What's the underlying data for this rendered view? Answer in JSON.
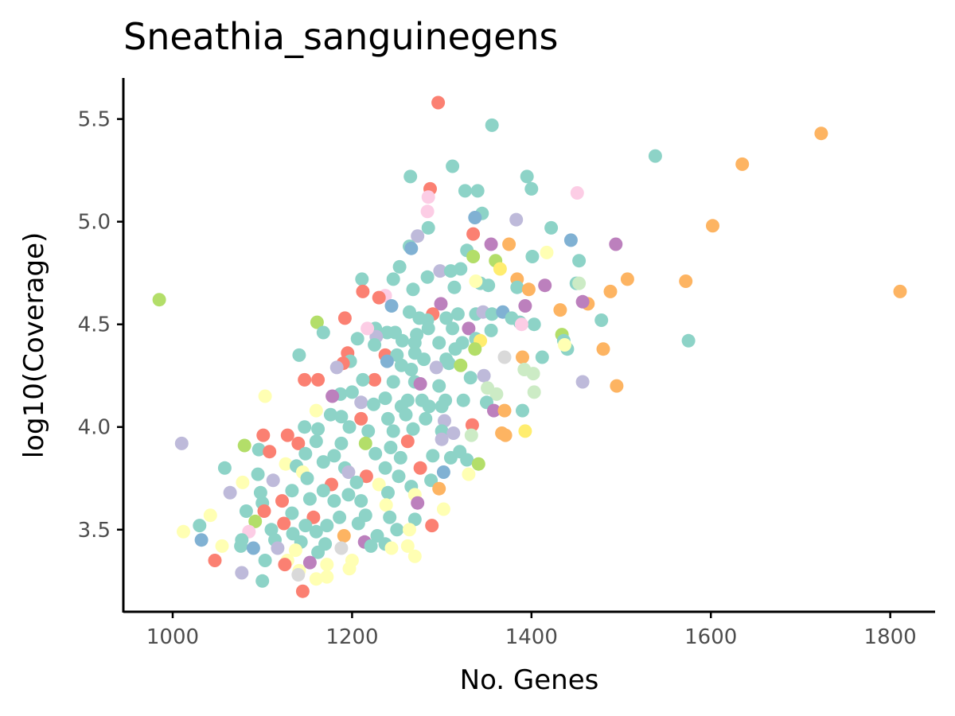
{
  "chart_data": {
    "type": "scatter",
    "title": "Sneathia_sanguinegens",
    "xlabel": "No. Genes",
    "ylabel": "log10(Coverage)",
    "xlim": [
      945,
      1850
    ],
    "ylim": [
      3.1,
      5.7
    ],
    "x_ticks": [
      1000,
      1200,
      1400,
      1600,
      1800
    ],
    "y_ticks": [
      3.5,
      4.0,
      4.5,
      5.0,
      5.5
    ],
    "grid": false,
    "legend": "none",
    "palette": [
      "#8dd3c7",
      "#ffffb3",
      "#bebada",
      "#fb8072",
      "#80b1d3",
      "#fdb462",
      "#b3de69",
      "#fccde5",
      "#d9d9d9",
      "#bc80bd",
      "#ccebc5",
      "#ffed6f"
    ],
    "points": [
      [
        1296,
        5.58,
        3
      ],
      [
        1356,
        5.47,
        0
      ],
      [
        1723,
        5.43,
        5
      ],
      [
        1538,
        5.32,
        0
      ],
      [
        1635,
        5.28,
        5
      ],
      [
        1312,
        5.27,
        0
      ],
      [
        1265,
        5.22,
        0
      ],
      [
        1395,
        5.22,
        0
      ],
      [
        1287,
        5.16,
        3
      ],
      [
        1326,
        5.15,
        0
      ],
      [
        1340,
        5.15,
        0
      ],
      [
        1400,
        5.16,
        0
      ],
      [
        1451,
        5.14,
        7
      ],
      [
        1285,
        5.12,
        7
      ],
      [
        1284,
        5.05,
        7
      ],
      [
        1345,
        5.04,
        0
      ],
      [
        1337,
        5.02,
        4
      ],
      [
        1383,
        5.01,
        2
      ],
      [
        1602,
        4.98,
        5
      ],
      [
        1422,
        4.97,
        0
      ],
      [
        1285,
        4.97,
        0
      ],
      [
        1335,
        4.94,
        3
      ],
      [
        1273,
        4.93,
        2
      ],
      [
        1444,
        4.91,
        4
      ],
      [
        1355,
        4.89,
        9
      ],
      [
        1375,
        4.89,
        5
      ],
      [
        1494,
        4.89,
        9
      ],
      [
        1264,
        4.88,
        0
      ],
      [
        1266,
        4.87,
        4
      ],
      [
        1328,
        4.86,
        0
      ],
      [
        1335,
        4.83,
        6
      ],
      [
        1401,
        4.83,
        0
      ],
      [
        1417,
        4.85,
        1
      ],
      [
        1453,
        4.81,
        0
      ],
      [
        1360,
        4.81,
        6
      ],
      [
        1253,
        4.78,
        0
      ],
      [
        1321,
        4.77,
        0
      ],
      [
        1365,
        4.77,
        11
      ],
      [
        1298,
        4.76,
        2
      ],
      [
        1310,
        4.76,
        0
      ],
      [
        1284,
        4.73,
        0
      ],
      [
        1246,
        4.72,
        0
      ],
      [
        1211,
        4.72,
        0
      ],
      [
        1384,
        4.72,
        5
      ],
      [
        1343,
        4.7,
        0
      ],
      [
        1352,
        4.69,
        0
      ],
      [
        1338,
        4.71,
        1
      ],
      [
        1415,
        4.69,
        9
      ],
      [
        1450,
        4.7,
        0
      ],
      [
        1453,
        4.7,
        10
      ],
      [
        1507,
        4.72,
        5
      ],
      [
        1572,
        4.71,
        5
      ],
      [
        1384,
        4.68,
        0
      ],
      [
        1397,
        4.67,
        5
      ],
      [
        1314,
        4.68,
        0
      ],
      [
        1268,
        4.67,
        0
      ],
      [
        1237,
        4.64,
        7
      ],
      [
        1230,
        4.63,
        3
      ],
      [
        1212,
        4.66,
        3
      ],
      [
        1299,
        4.6,
        9
      ],
      [
        1244,
        4.59,
        4
      ],
      [
        1264,
        4.56,
        0
      ],
      [
        1290,
        4.55,
        3
      ],
      [
        1338,
        4.55,
        0
      ],
      [
        1346,
        4.56,
        2
      ],
      [
        1356,
        4.55,
        0
      ],
      [
        1368,
        4.56,
        4
      ],
      [
        1393,
        4.59,
        9
      ],
      [
        1432,
        4.57,
        5
      ],
      [
        1463,
        4.6,
        5
      ],
      [
        1457,
        4.61,
        9
      ],
      [
        1488,
        4.66,
        5
      ],
      [
        1811,
        4.66,
        5
      ],
      [
        985,
        4.62,
        6
      ],
      [
        1275,
        4.53,
        0
      ],
      [
        1284,
        4.52,
        0
      ],
      [
        1305,
        4.53,
        0
      ],
      [
        1318,
        4.55,
        0
      ],
      [
        1378,
        4.53,
        0
      ],
      [
        1387,
        4.51,
        0
      ],
      [
        1403,
        4.5,
        0
      ],
      [
        1389,
        4.5,
        7
      ],
      [
        1478,
        4.52,
        0
      ],
      [
        1226,
        4.48,
        0
      ],
      [
        1192,
        4.53,
        3
      ],
      [
        1161,
        4.51,
        6
      ],
      [
        1239,
        4.46,
        0
      ],
      [
        1248,
        4.46,
        0
      ],
      [
        1272,
        4.45,
        0
      ],
      [
        1285,
        4.48,
        0
      ],
      [
        1312,
        4.48,
        0
      ],
      [
        1330,
        4.48,
        9
      ],
      [
        1355,
        4.47,
        0
      ],
      [
        1434,
        4.45,
        6
      ],
      [
        1436,
        4.42,
        0
      ],
      [
        1575,
        4.42,
        0
      ],
      [
        1168,
        4.46,
        0
      ],
      [
        1206,
        4.43,
        0
      ],
      [
        1227,
        4.44,
        2
      ],
      [
        1217,
        4.48,
        7
      ],
      [
        1225,
        4.4,
        0
      ],
      [
        1256,
        4.42,
        0
      ],
      [
        1270,
        4.41,
        0
      ],
      [
        1297,
        4.41,
        0
      ],
      [
        1323,
        4.41,
        0
      ],
      [
        1338,
        4.43,
        0
      ],
      [
        1343,
        4.42,
        11
      ],
      [
        1390,
        4.34,
        5
      ],
      [
        1440,
        4.38,
        0
      ],
      [
        1437,
        4.4,
        1
      ],
      [
        1480,
        4.38,
        5
      ],
      [
        1141,
        4.35,
        0
      ],
      [
        1195,
        4.36,
        3
      ],
      [
        1237,
        4.35,
        3
      ],
      [
        1250,
        4.35,
        0
      ],
      [
        1270,
        4.36,
        0
      ],
      [
        1280,
        4.33,
        0
      ],
      [
        1305,
        4.33,
        0
      ],
      [
        1315,
        4.38,
        0
      ],
      [
        1337,
        4.38,
        6
      ],
      [
        1370,
        4.34,
        8
      ],
      [
        1412,
        4.34,
        0
      ],
      [
        1198,
        4.32,
        0
      ],
      [
        1190,
        4.31,
        3
      ],
      [
        1183,
        4.29,
        2
      ],
      [
        1239,
        4.32,
        4
      ],
      [
        1255,
        4.3,
        0
      ],
      [
        1266,
        4.28,
        0
      ],
      [
        1294,
        4.29,
        2
      ],
      [
        1308,
        4.31,
        0
      ],
      [
        1321,
        4.3,
        6
      ],
      [
        1392,
        4.28,
        10
      ],
      [
        1402,
        4.26,
        10
      ],
      [
        1347,
        4.25,
        2
      ],
      [
        1332,
        4.24,
        0
      ],
      [
        1147,
        4.23,
        3
      ],
      [
        1162,
        4.23,
        3
      ],
      [
        1225,
        4.23,
        3
      ],
      [
        1212,
        4.23,
        0
      ],
      [
        1246,
        4.22,
        0
      ],
      [
        1270,
        4.22,
        0
      ],
      [
        1276,
        4.21,
        9
      ],
      [
        1297,
        4.2,
        0
      ],
      [
        1457,
        4.22,
        2
      ],
      [
        1495,
        4.2,
        5
      ],
      [
        1351,
        4.19,
        10
      ],
      [
        1361,
        4.16,
        10
      ],
      [
        1403,
        4.17,
        10
      ],
      [
        1187,
        4.16,
        0
      ],
      [
        1200,
        4.17,
        0
      ],
      [
        1237,
        4.14,
        0
      ],
      [
        1262,
        4.13,
        0
      ],
      [
        1278,
        4.13,
        0
      ],
      [
        1304,
        4.13,
        0
      ],
      [
        1324,
        4.13,
        0
      ],
      [
        1103,
        4.15,
        1
      ],
      [
        1178,
        4.15,
        9
      ],
      [
        1210,
        4.12,
        2
      ],
      [
        1224,
        4.11,
        0
      ],
      [
        1255,
        4.1,
        0
      ],
      [
        1286,
        4.1,
        0
      ],
      [
        1300,
        4.1,
        0
      ],
      [
        1350,
        4.12,
        0
      ],
      [
        1358,
        4.08,
        9
      ],
      [
        1370,
        4.08,
        5
      ],
      [
        1390,
        4.08,
        0
      ],
      [
        1160,
        4.08,
        1
      ],
      [
        1176,
        4.06,
        0
      ],
      [
        1188,
        4.05,
        0
      ],
      [
        1210,
        4.04,
        3
      ],
      [
        1240,
        4.04,
        0
      ],
      [
        1260,
        4.06,
        0
      ],
      [
        1282,
        4.04,
        0
      ],
      [
        1303,
        4.03,
        2
      ],
      [
        1334,
        4.01,
        3
      ],
      [
        1147,
        4.0,
        0
      ],
      [
        1162,
        3.99,
        0
      ],
      [
        1197,
        4.0,
        0
      ],
      [
        1218,
        3.98,
        0
      ],
      [
        1246,
        3.98,
        0
      ],
      [
        1268,
        3.99,
        0
      ],
      [
        1300,
        3.98,
        0
      ],
      [
        1313,
        3.97,
        2
      ],
      [
        1333,
        3.96,
        10
      ],
      [
        1367,
        3.97,
        5
      ],
      [
        1371,
        3.96,
        5
      ],
      [
        1393,
        3.98,
        11
      ],
      [
        1010,
        3.92,
        2
      ],
      [
        1101,
        3.96,
        3
      ],
      [
        1128,
        3.96,
        3
      ],
      [
        1140,
        3.92,
        3
      ],
      [
        1160,
        3.93,
        0
      ],
      [
        1188,
        3.92,
        0
      ],
      [
        1215,
        3.92,
        6
      ],
      [
        1243,
        3.9,
        0
      ],
      [
        1262,
        3.93,
        3
      ],
      [
        1300,
        3.94,
        2
      ],
      [
        1320,
        3.88,
        0
      ],
      [
        1080,
        3.91,
        6
      ],
      [
        1096,
        3.89,
        0
      ],
      [
        1108,
        3.88,
        3
      ],
      [
        1148,
        3.87,
        0
      ],
      [
        1180,
        3.86,
        0
      ],
      [
        1226,
        3.87,
        0
      ],
      [
        1254,
        3.85,
        0
      ],
      [
        1290,
        3.86,
        0
      ],
      [
        1310,
        3.85,
        0
      ],
      [
        1328,
        3.84,
        0
      ],
      [
        1341,
        3.82,
        6
      ],
      [
        1058,
        3.8,
        0
      ],
      [
        1126,
        3.82,
        1
      ],
      [
        1138,
        3.81,
        0
      ],
      [
        1168,
        3.83,
        0
      ],
      [
        1192,
        3.8,
        0
      ],
      [
        1237,
        3.8,
        0
      ],
      [
        1276,
        3.8,
        3
      ],
      [
        1302,
        3.78,
        4
      ],
      [
        1330,
        3.77,
        1
      ],
      [
        1095,
        3.77,
        0
      ],
      [
        1145,
        3.78,
        1
      ],
      [
        1196,
        3.78,
        2
      ],
      [
        1216,
        3.76,
        3
      ],
      [
        1252,
        3.76,
        0
      ],
      [
        1288,
        3.74,
        0
      ],
      [
        1078,
        3.73,
        1
      ],
      [
        1112,
        3.74,
        2
      ],
      [
        1150,
        3.75,
        0
      ],
      [
        1177,
        3.72,
        3
      ],
      [
        1205,
        3.73,
        0
      ],
      [
        1230,
        3.72,
        1
      ],
      [
        1266,
        3.71,
        0
      ],
      [
        1297,
        3.7,
        5
      ],
      [
        1064,
        3.68,
        2
      ],
      [
        1098,
        3.68,
        0
      ],
      [
        1133,
        3.69,
        0
      ],
      [
        1168,
        3.69,
        0
      ],
      [
        1196,
        3.67,
        0
      ],
      [
        1240,
        3.68,
        0
      ],
      [
        1270,
        3.67,
        1
      ],
      [
        1100,
        3.63,
        0
      ],
      [
        1122,
        3.64,
        3
      ],
      [
        1153,
        3.65,
        0
      ],
      [
        1180,
        3.64,
        0
      ],
      [
        1210,
        3.64,
        0
      ],
      [
        1238,
        3.62,
        1
      ],
      [
        1273,
        3.63,
        9
      ],
      [
        1302,
        3.6,
        1
      ],
      [
        1042,
        3.57,
        1
      ],
      [
        1082,
        3.59,
        0
      ],
      [
        1102,
        3.59,
        3
      ],
      [
        1133,
        3.58,
        0
      ],
      [
        1157,
        3.56,
        3
      ],
      [
        1186,
        3.56,
        0
      ],
      [
        1215,
        3.57,
        0
      ],
      [
        1242,
        3.56,
        0
      ],
      [
        1270,
        3.55,
        0
      ],
      [
        1030,
        3.52,
        0
      ],
      [
        1092,
        3.54,
        6
      ],
      [
        1124,
        3.53,
        3
      ],
      [
        1148,
        3.52,
        0
      ],
      [
        1172,
        3.52,
        0
      ],
      [
        1207,
        3.53,
        0
      ],
      [
        1250,
        3.5,
        0
      ],
      [
        1289,
        3.52,
        3
      ],
      [
        1012,
        3.49,
        1
      ],
      [
        1085,
        3.49,
        7
      ],
      [
        1110,
        3.5,
        0
      ],
      [
        1134,
        3.48,
        0
      ],
      [
        1160,
        3.49,
        0
      ],
      [
        1191,
        3.47,
        5
      ],
      [
        1228,
        3.47,
        0
      ],
      [
        1264,
        3.5,
        1
      ],
      [
        1032,
        3.45,
        4
      ],
      [
        1077,
        3.45,
        0
      ],
      [
        1114,
        3.45,
        0
      ],
      [
        1143,
        3.44,
        0
      ],
      [
        1170,
        3.43,
        0
      ],
      [
        1214,
        3.44,
        9
      ],
      [
        1237,
        3.43,
        0
      ],
      [
        1262,
        3.42,
        1
      ],
      [
        1055,
        3.42,
        1
      ],
      [
        1076,
        3.42,
        0
      ],
      [
        1090,
        3.41,
        4
      ],
      [
        1117,
        3.41,
        2
      ],
      [
        1137,
        3.4,
        1
      ],
      [
        1162,
        3.39,
        0
      ],
      [
        1188,
        3.41,
        8
      ],
      [
        1221,
        3.42,
        0
      ],
      [
        1244,
        3.41,
        1
      ],
      [
        1047,
        3.35,
        3
      ],
      [
        1103,
        3.35,
        0
      ],
      [
        1128,
        3.35,
        1
      ],
      [
        1153,
        3.34,
        9
      ],
      [
        1172,
        3.33,
        1
      ],
      [
        1200,
        3.35,
        1
      ],
      [
        1270,
        3.37,
        1
      ],
      [
        1077,
        3.29,
        2
      ],
      [
        1125,
        3.33,
        3
      ],
      [
        1141,
        3.3,
        1
      ],
      [
        1172,
        3.27,
        1
      ],
      [
        1197,
        3.31,
        1
      ],
      [
        1100,
        3.25,
        0
      ],
      [
        1140,
        3.28,
        8
      ],
      [
        1160,
        3.26,
        1
      ],
      [
        1145,
        3.2,
        3
      ]
    ]
  }
}
